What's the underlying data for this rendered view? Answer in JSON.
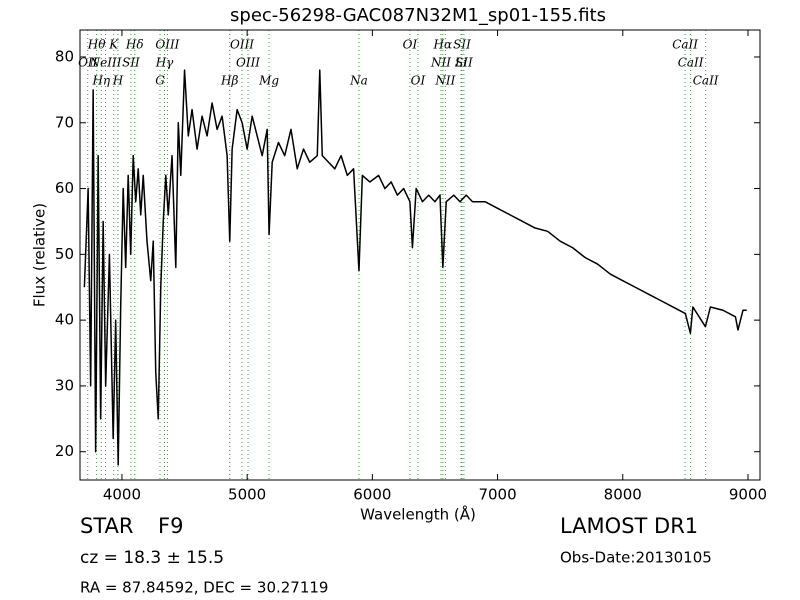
{
  "chart_data": {
    "type": "line",
    "title": "spec-56298-GAC087N32M1_sp01-155.fits",
    "x_label": "Wavelength (Å)",
    "y_label": "Flux (relative)",
    "x": [
      3700,
      3730,
      3750,
      3770,
      3790,
      3810,
      3830,
      3850,
      3870,
      3900,
      3930,
      3950,
      3970,
      3990,
      4010,
      4030,
      4050,
      4070,
      4090,
      4110,
      4130,
      4150,
      4170,
      4200,
      4230,
      4250,
      4270,
      4290,
      4310,
      4330,
      4350,
      4370,
      4400,
      4430,
      4450,
      4470,
      4500,
      4530,
      4560,
      4600,
      4640,
      4680,
      4720,
      4760,
      4800,
      4840,
      4861,
      4880,
      4920,
      4960,
      5000,
      5040,
      5080,
      5120,
      5160,
      5175,
      5200,
      5250,
      5300,
      5350,
      5400,
      5450,
      5500,
      5560,
      5580,
      5600,
      5650,
      5700,
      5750,
      5800,
      5850,
      5893,
      5920,
      5980,
      6050,
      6100,
      6150,
      6200,
      6250,
      6300,
      6320,
      6350,
      6400,
      6450,
      6500,
      6540,
      6563,
      6590,
      6650,
      6700,
      6750,
      6800,
      6900,
      7000,
      7100,
      7200,
      7300,
      7400,
      7500,
      7600,
      7700,
      7800,
      7900,
      8000,
      8100,
      8200,
      8300,
      8400,
      8500,
      8540,
      8560,
      8660,
      8700,
      8800,
      8900,
      8920,
      8960,
      8990
    ],
    "series": [
      {
        "color": "#000000",
        "values": [
          45,
          60,
          30,
          75,
          20,
          65,
          25,
          55,
          30,
          50,
          22,
          40,
          18,
          42,
          60,
          48,
          62,
          50,
          65,
          58,
          63,
          56,
          62,
          52,
          46,
          52,
          32,
          25,
          45,
          55,
          62,
          56,
          65,
          48,
          70,
          62,
          78,
          68,
          72,
          66,
          71,
          68,
          73,
          69,
          71,
          65,
          52,
          66,
          72,
          70,
          66,
          71,
          68,
          65,
          69,
          53,
          64,
          67,
          65,
          69,
          63,
          66,
          64,
          65,
          78,
          65,
          64,
          63,
          65,
          62,
          63,
          47.5,
          62,
          61,
          62,
          60,
          61,
          59,
          60,
          58,
          51,
          60,
          58,
          59,
          58,
          59,
          48,
          58,
          59,
          58,
          59,
          58,
          58,
          57,
          56,
          55,
          54,
          53.5,
          52,
          51,
          49.5,
          48.5,
          47,
          46,
          45,
          44,
          43,
          42,
          41,
          38,
          42,
          39,
          42,
          41.5,
          40.5,
          38.5,
          41.5,
          41.5
        ]
      }
    ],
    "xlim": [
      3665,
      9096
    ],
    "ylim": [
      15.7,
      84.1
    ],
    "xticks": [
      4000,
      5000,
      6000,
      7000,
      8000,
      9000
    ],
    "yticks": [
      20,
      30,
      40,
      50,
      60,
      70,
      80
    ],
    "grid": false,
    "lines_color": "#2ca02c",
    "lines": [
      {
        "wavelength": 3798,
        "label": "Hθ"
      },
      {
        "wavelength": 3727,
        "label": "OII"
      },
      {
        "wavelength": 3835,
        "label": "Hη"
      },
      {
        "wavelength": 3934,
        "label": "K"
      },
      {
        "wavelength": 3869,
        "label": "NeIII"
      },
      {
        "wavelength": 3968,
        "label": "H"
      },
      {
        "wavelength": 4102,
        "label": "Hδ"
      },
      {
        "wavelength": 4340,
        "label": "Hγ"
      },
      {
        "wavelength": 4304,
        "label": "G"
      },
      {
        "wavelength": 4363,
        "label": "OIII"
      },
      {
        "wavelength": 4072,
        "label": "SII"
      },
      {
        "wavelength": 4861,
        "label": "Hβ"
      },
      {
        "wavelength": 4959,
        "label": "OIII"
      },
      {
        "wavelength": 5007,
        "label": "OIII"
      },
      {
        "wavelength": 5175,
        "label": "Mg"
      },
      {
        "wavelength": 6300,
        "label": "OI"
      },
      {
        "wavelength": 6548,
        "label": "NII"
      },
      {
        "wavelength": 5893,
        "label": "Na"
      },
      {
        "wavelength": 6563,
        "label": "Hα"
      },
      {
        "wavelength": 6708,
        "label": "Li"
      },
      {
        "wavelength": 6364,
        "label": "OI"
      },
      {
        "wavelength": 6716,
        "label": "SII"
      },
      {
        "wavelength": 8542,
        "label": "CaII"
      },
      {
        "wavelength": 6583,
        "label": "NII"
      },
      {
        "wavelength": 8498,
        "label": "CaII"
      },
      {
        "wavelength": 6731,
        "label": "SII",
        "dummy_row": null
      },
      {
        "wavelength": 8662,
        "label": "CaII"
      }
    ]
  },
  "footer": {
    "class": "STAR",
    "subclass": "F9",
    "cz": "cz = 18.3 ± 15.5",
    "coords": "RA = 87.84592, DEC = 30.27119",
    "survey": "LAMOST DR1",
    "obs_date": "Obs-Date:20130105"
  }
}
